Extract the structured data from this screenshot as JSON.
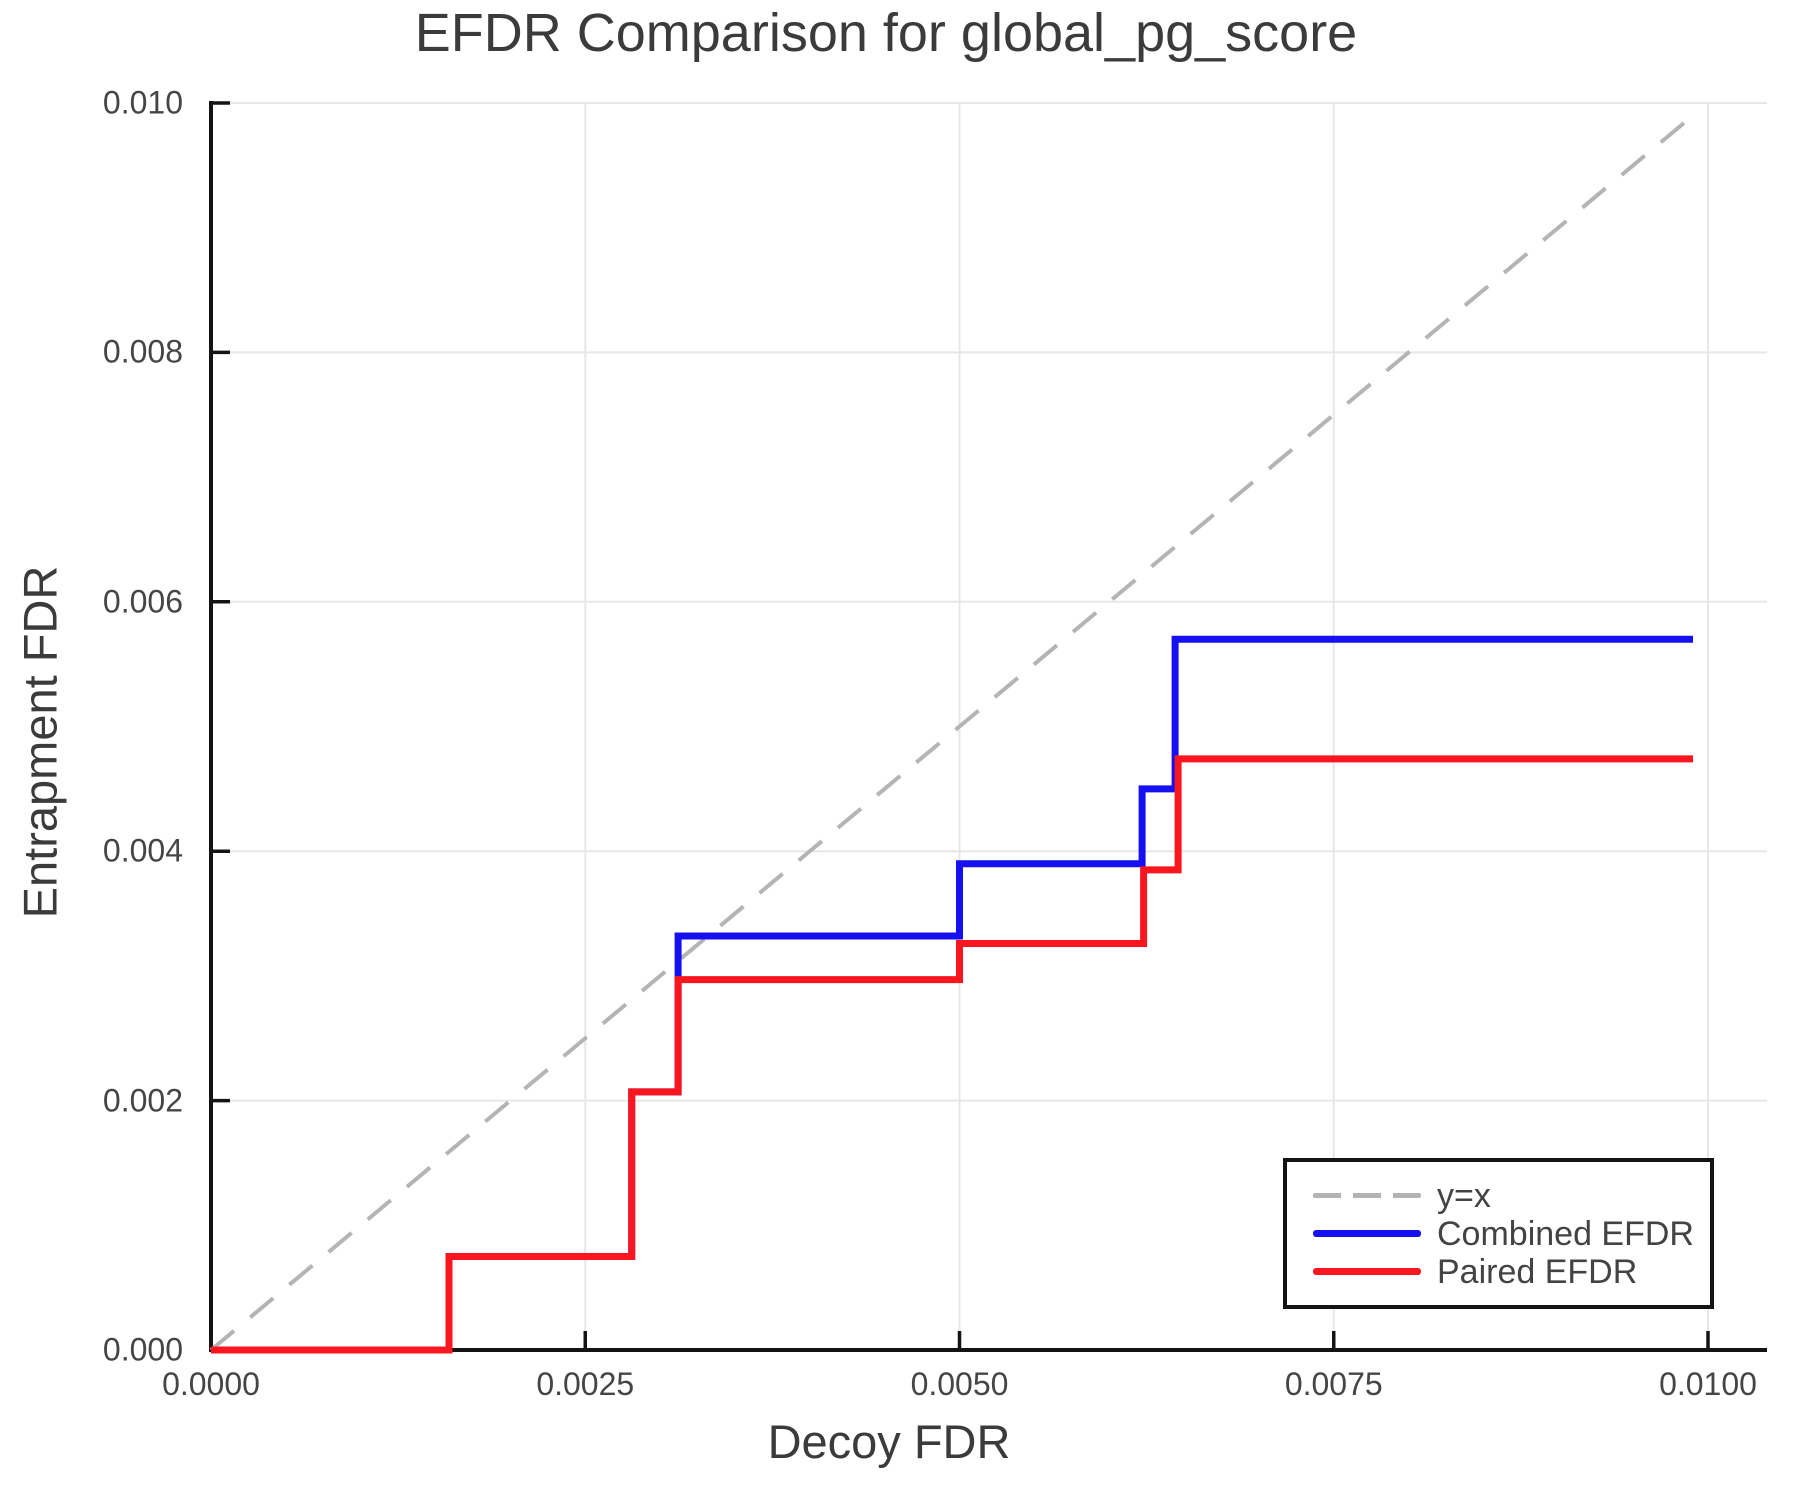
{
  "title": "EFDR Comparison for global_pg_score",
  "axes": {
    "xlabel": "Decoy FDR",
    "ylabel": "Entrapment FDR"
  },
  "legend": {
    "position": "lower right",
    "items": [
      {
        "label": "y=x",
        "color": "#b4b4b4",
        "style": "dashed"
      },
      {
        "label": "Combined EFDR",
        "color": "#1410f0",
        "style": "solid"
      },
      {
        "label": "Paired EFDR",
        "color": "#fa161e",
        "style": "solid"
      }
    ]
  },
  "colors": {
    "background": "#ffffff",
    "grid": "#e7e7e7",
    "spine": "#141414",
    "text": "#3b3b3b",
    "tick_text": "#454545",
    "combined_line": "#1410f0",
    "paired_line": "#fa161e",
    "identity_line": "#b4b4b4"
  },
  "chart_data": {
    "type": "line",
    "title": "EFDR Comparison for global_pg_score",
    "xlabel": "Decoy FDR",
    "ylabel": "Entrapment FDR",
    "xlim": [
      0,
      0.0104
    ],
    "ylim": [
      0,
      0.01
    ],
    "grid": true,
    "legend_position": "lower right",
    "x_ticks": {
      "values": [
        0,
        0.0025,
        0.005,
        0.0075,
        0.01
      ],
      "labels": [
        "0.0000",
        "0.0025",
        "0.0050",
        "0.0075",
        "0.0100"
      ]
    },
    "y_ticks": {
      "values": [
        0,
        0.002,
        0.004,
        0.006,
        0.008,
        0.01
      ],
      "labels": [
        "0.000",
        "0.002",
        "0.004",
        "0.006",
        "0.008",
        "0.010"
      ]
    },
    "series": [
      {
        "name": "y=x",
        "color": "#b4b4b4",
        "line_style": "dashed",
        "step": false,
        "points": [
          [
            0,
            0
          ],
          [
            0.0099,
            0.0099
          ]
        ]
      },
      {
        "name": "Combined EFDR",
        "color": "#1410f0",
        "line_style": "solid",
        "step": true,
        "points": [
          [
            0,
            0
          ],
          [
            0.00159,
            0
          ],
          [
            0.00159,
            0.00075
          ],
          [
            0.00281,
            0.00075
          ],
          [
            0.00281,
            0.00207
          ],
          [
            0.00312,
            0.00207
          ],
          [
            0.00312,
            0.00332
          ],
          [
            0.005,
            0.00332
          ],
          [
            0.005,
            0.0039
          ],
          [
            0.00622,
            0.0039
          ],
          [
            0.00622,
            0.0045
          ],
          [
            0.00644,
            0.0045
          ],
          [
            0.00644,
            0.0057
          ],
          [
            0.0099,
            0.0057
          ]
        ]
      },
      {
        "name": "Paired EFDR",
        "color": "#fa161e",
        "line_style": "solid",
        "step": true,
        "points": [
          [
            0,
            0
          ],
          [
            0.00159,
            0
          ],
          [
            0.00159,
            0.00075
          ],
          [
            0.00281,
            0.00075
          ],
          [
            0.00281,
            0.00207
          ],
          [
            0.00312,
            0.00207
          ],
          [
            0.00312,
            0.00297
          ],
          [
            0.005,
            0.00297
          ],
          [
            0.005,
            0.00326
          ],
          [
            0.00623,
            0.00326
          ],
          [
            0.00623,
            0.00385
          ],
          [
            0.00646,
            0.00385
          ],
          [
            0.00646,
            0.00474
          ],
          [
            0.0099,
            0.00474
          ]
        ]
      }
    ]
  }
}
